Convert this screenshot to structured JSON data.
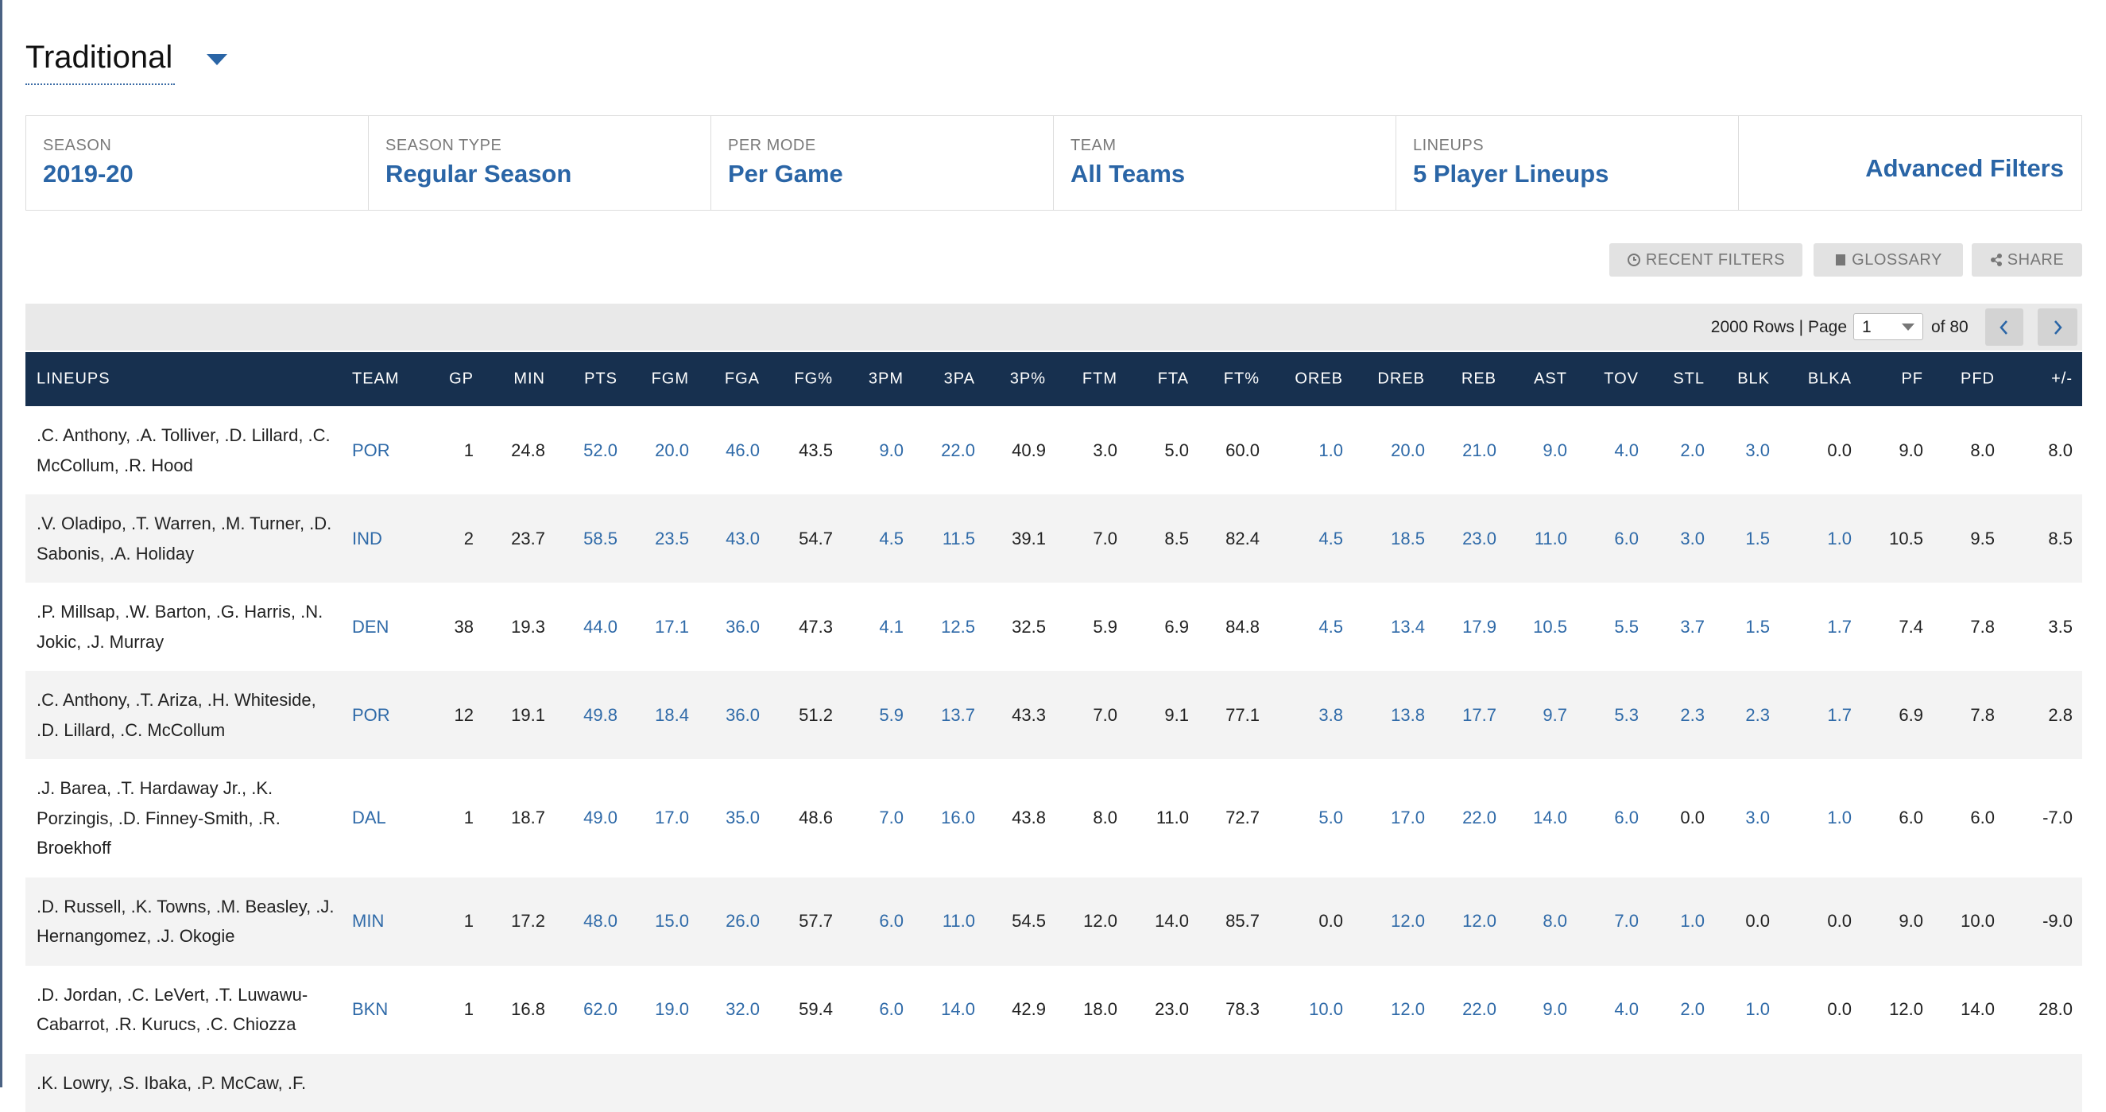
{
  "header": {
    "title": "Traditional"
  },
  "filters": [
    {
      "label": "SEASON",
      "value": "2019-20"
    },
    {
      "label": "SEASON TYPE",
      "value": "Regular Season"
    },
    {
      "label": "PER MODE",
      "value": "Per Game"
    },
    {
      "label": "TEAM",
      "value": "All Teams"
    },
    {
      "label": "LINEUPS",
      "value": "5 Player Lineups"
    }
  ],
  "advanced_filters": "Advanced Filters",
  "buttons": [
    "RECENT FILTERS",
    "GLOSSARY",
    "SHARE"
  ],
  "pagination": {
    "rows_text": "2000 Rows | Page",
    "page": "1",
    "of_text": "of 80"
  },
  "table": {
    "columns": [
      "LINEUPS",
      "TEAM",
      "GP",
      "MIN",
      "PTS",
      "FGM",
      "FGA",
      "FG%",
      "3PM",
      "3PA",
      "3P%",
      "FTM",
      "FTA",
      "FT%",
      "OREB",
      "DREB",
      "REB",
      "AST",
      "TOV",
      "STL",
      "BLK",
      "BLKA",
      "PF",
      "PFD",
      "+/-"
    ],
    "rows": [
      [
        ".C. Anthony, .A. Tolliver, .D. Lillard, .C. McCollum, .R. Hood",
        "POR",
        "1",
        "24.8",
        "52.0",
        "20.0",
        "46.0",
        "43.5",
        "9.0",
        "22.0",
        "40.9",
        "3.0",
        "5.0",
        "60.0",
        "1.0",
        "20.0",
        "21.0",
        "9.0",
        "4.0",
        "2.0",
        "3.0",
        "0.0",
        "9.0",
        "8.0",
        "8.0"
      ],
      [
        ".V. Oladipo, .T. Warren, .M. Turner, .D. Sabonis, .A. Holiday",
        "IND",
        "2",
        "23.7",
        "58.5",
        "23.5",
        "43.0",
        "54.7",
        "4.5",
        "11.5",
        "39.1",
        "7.0",
        "8.5",
        "82.4",
        "4.5",
        "18.5",
        "23.0",
        "11.0",
        "6.0",
        "3.0",
        "1.5",
        "1.0",
        "10.5",
        "9.5",
        "8.5"
      ],
      [
        ".P. Millsap, .W. Barton, .G. Harris, .N. Jokic, .J. Murray",
        "DEN",
        "38",
        "19.3",
        "44.0",
        "17.1",
        "36.0",
        "47.3",
        "4.1",
        "12.5",
        "32.5",
        "5.9",
        "6.9",
        "84.8",
        "4.5",
        "13.4",
        "17.9",
        "10.5",
        "5.5",
        "3.7",
        "1.5",
        "1.7",
        "7.4",
        "7.8",
        "3.5"
      ],
      [
        ".C. Anthony, .T. Ariza, .H. Whiteside, .D. Lillard, .C. McCollum",
        "POR",
        "12",
        "19.1",
        "49.8",
        "18.4",
        "36.0",
        "51.2",
        "5.9",
        "13.7",
        "43.3",
        "7.0",
        "9.1",
        "77.1",
        "3.8",
        "13.8",
        "17.7",
        "9.7",
        "5.3",
        "2.3",
        "2.3",
        "1.7",
        "6.9",
        "7.8",
        "2.8"
      ],
      [
        ".J. Barea, .T. Hardaway Jr., .K. Porzingis, .D. Finney-Smith, .R. Broekhoff",
        "DAL",
        "1",
        "18.7",
        "49.0",
        "17.0",
        "35.0",
        "48.6",
        "7.0",
        "16.0",
        "43.8",
        "8.0",
        "11.0",
        "72.7",
        "5.0",
        "17.0",
        "22.0",
        "14.0",
        "6.0",
        "0.0",
        "3.0",
        "1.0",
        "6.0",
        "6.0",
        "-7.0"
      ],
      [
        ".D. Russell, .K. Towns, .M. Beasley, .J. Hernangomez, .J. Okogie",
        "MIN",
        "1",
        "17.2",
        "48.0",
        "15.0",
        "26.0",
        "57.7",
        "6.0",
        "11.0",
        "54.5",
        "12.0",
        "14.0",
        "85.7",
        "0.0",
        "12.0",
        "12.0",
        "8.0",
        "7.0",
        "1.0",
        "0.0",
        "0.0",
        "9.0",
        "10.0",
        "-9.0"
      ],
      [
        ".D. Jordan, .C. LeVert, .T. Luwawu-Cabarrot, .R. Kurucs, .C. Chiozza",
        "BKN",
        "1",
        "16.8",
        "62.0",
        "19.0",
        "32.0",
        "59.4",
        "6.0",
        "14.0",
        "42.9",
        "18.0",
        "23.0",
        "78.3",
        "10.0",
        "12.0",
        "22.0",
        "9.0",
        "4.0",
        "2.0",
        "1.0",
        "0.0",
        "12.0",
        "14.0",
        "28.0"
      ],
      [
        ".K. Lowry, .S. Ibaka, .P. McCaw, .F."
      ]
    ]
  }
}
